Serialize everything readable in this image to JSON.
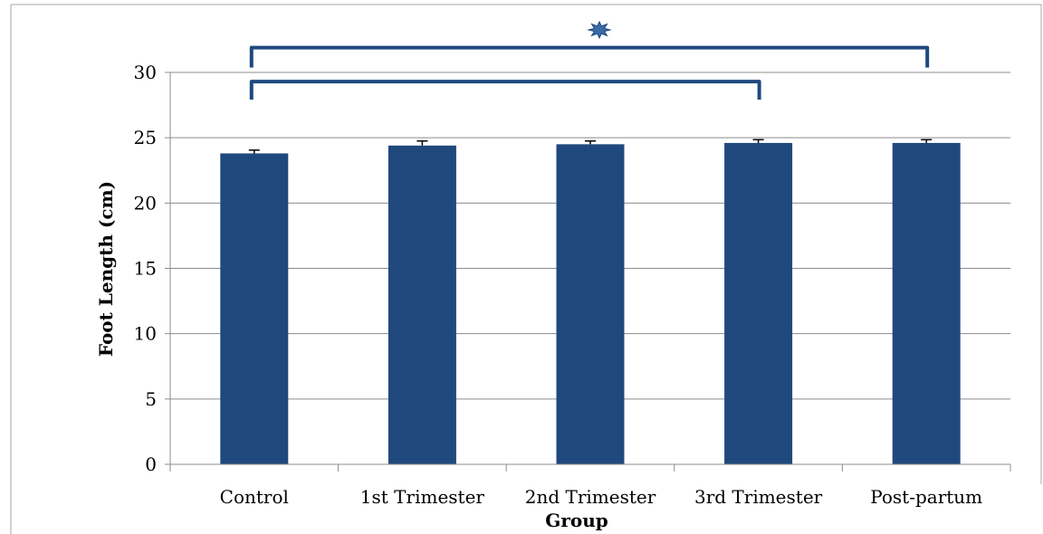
{
  "chart_data": {
    "type": "bar",
    "title": "",
    "xlabel": "Group",
    "ylabel": "Foot Length (cm)",
    "ylim": [
      0,
      30
    ],
    "yticks": [
      0,
      5,
      10,
      15,
      20,
      25,
      30
    ],
    "categories": [
      "Control",
      "1st Trimester",
      "2nd Trimester",
      "3rd Trimester",
      "Post-partum"
    ],
    "values": [
      23.8,
      24.4,
      24.5,
      24.6,
      24.6
    ],
    "errors": [
      0.25,
      0.35,
      0.25,
      0.25,
      0.25
    ],
    "bar_color": "#1f497d",
    "grid": true,
    "annotations": {
      "significance_marker": "*",
      "brackets": [
        {
          "from": "Control",
          "to": "Post-partum",
          "y": 31.9
        },
        {
          "from": "Control",
          "to": "3rd Trimester",
          "y": 29.3
        }
      ]
    }
  }
}
